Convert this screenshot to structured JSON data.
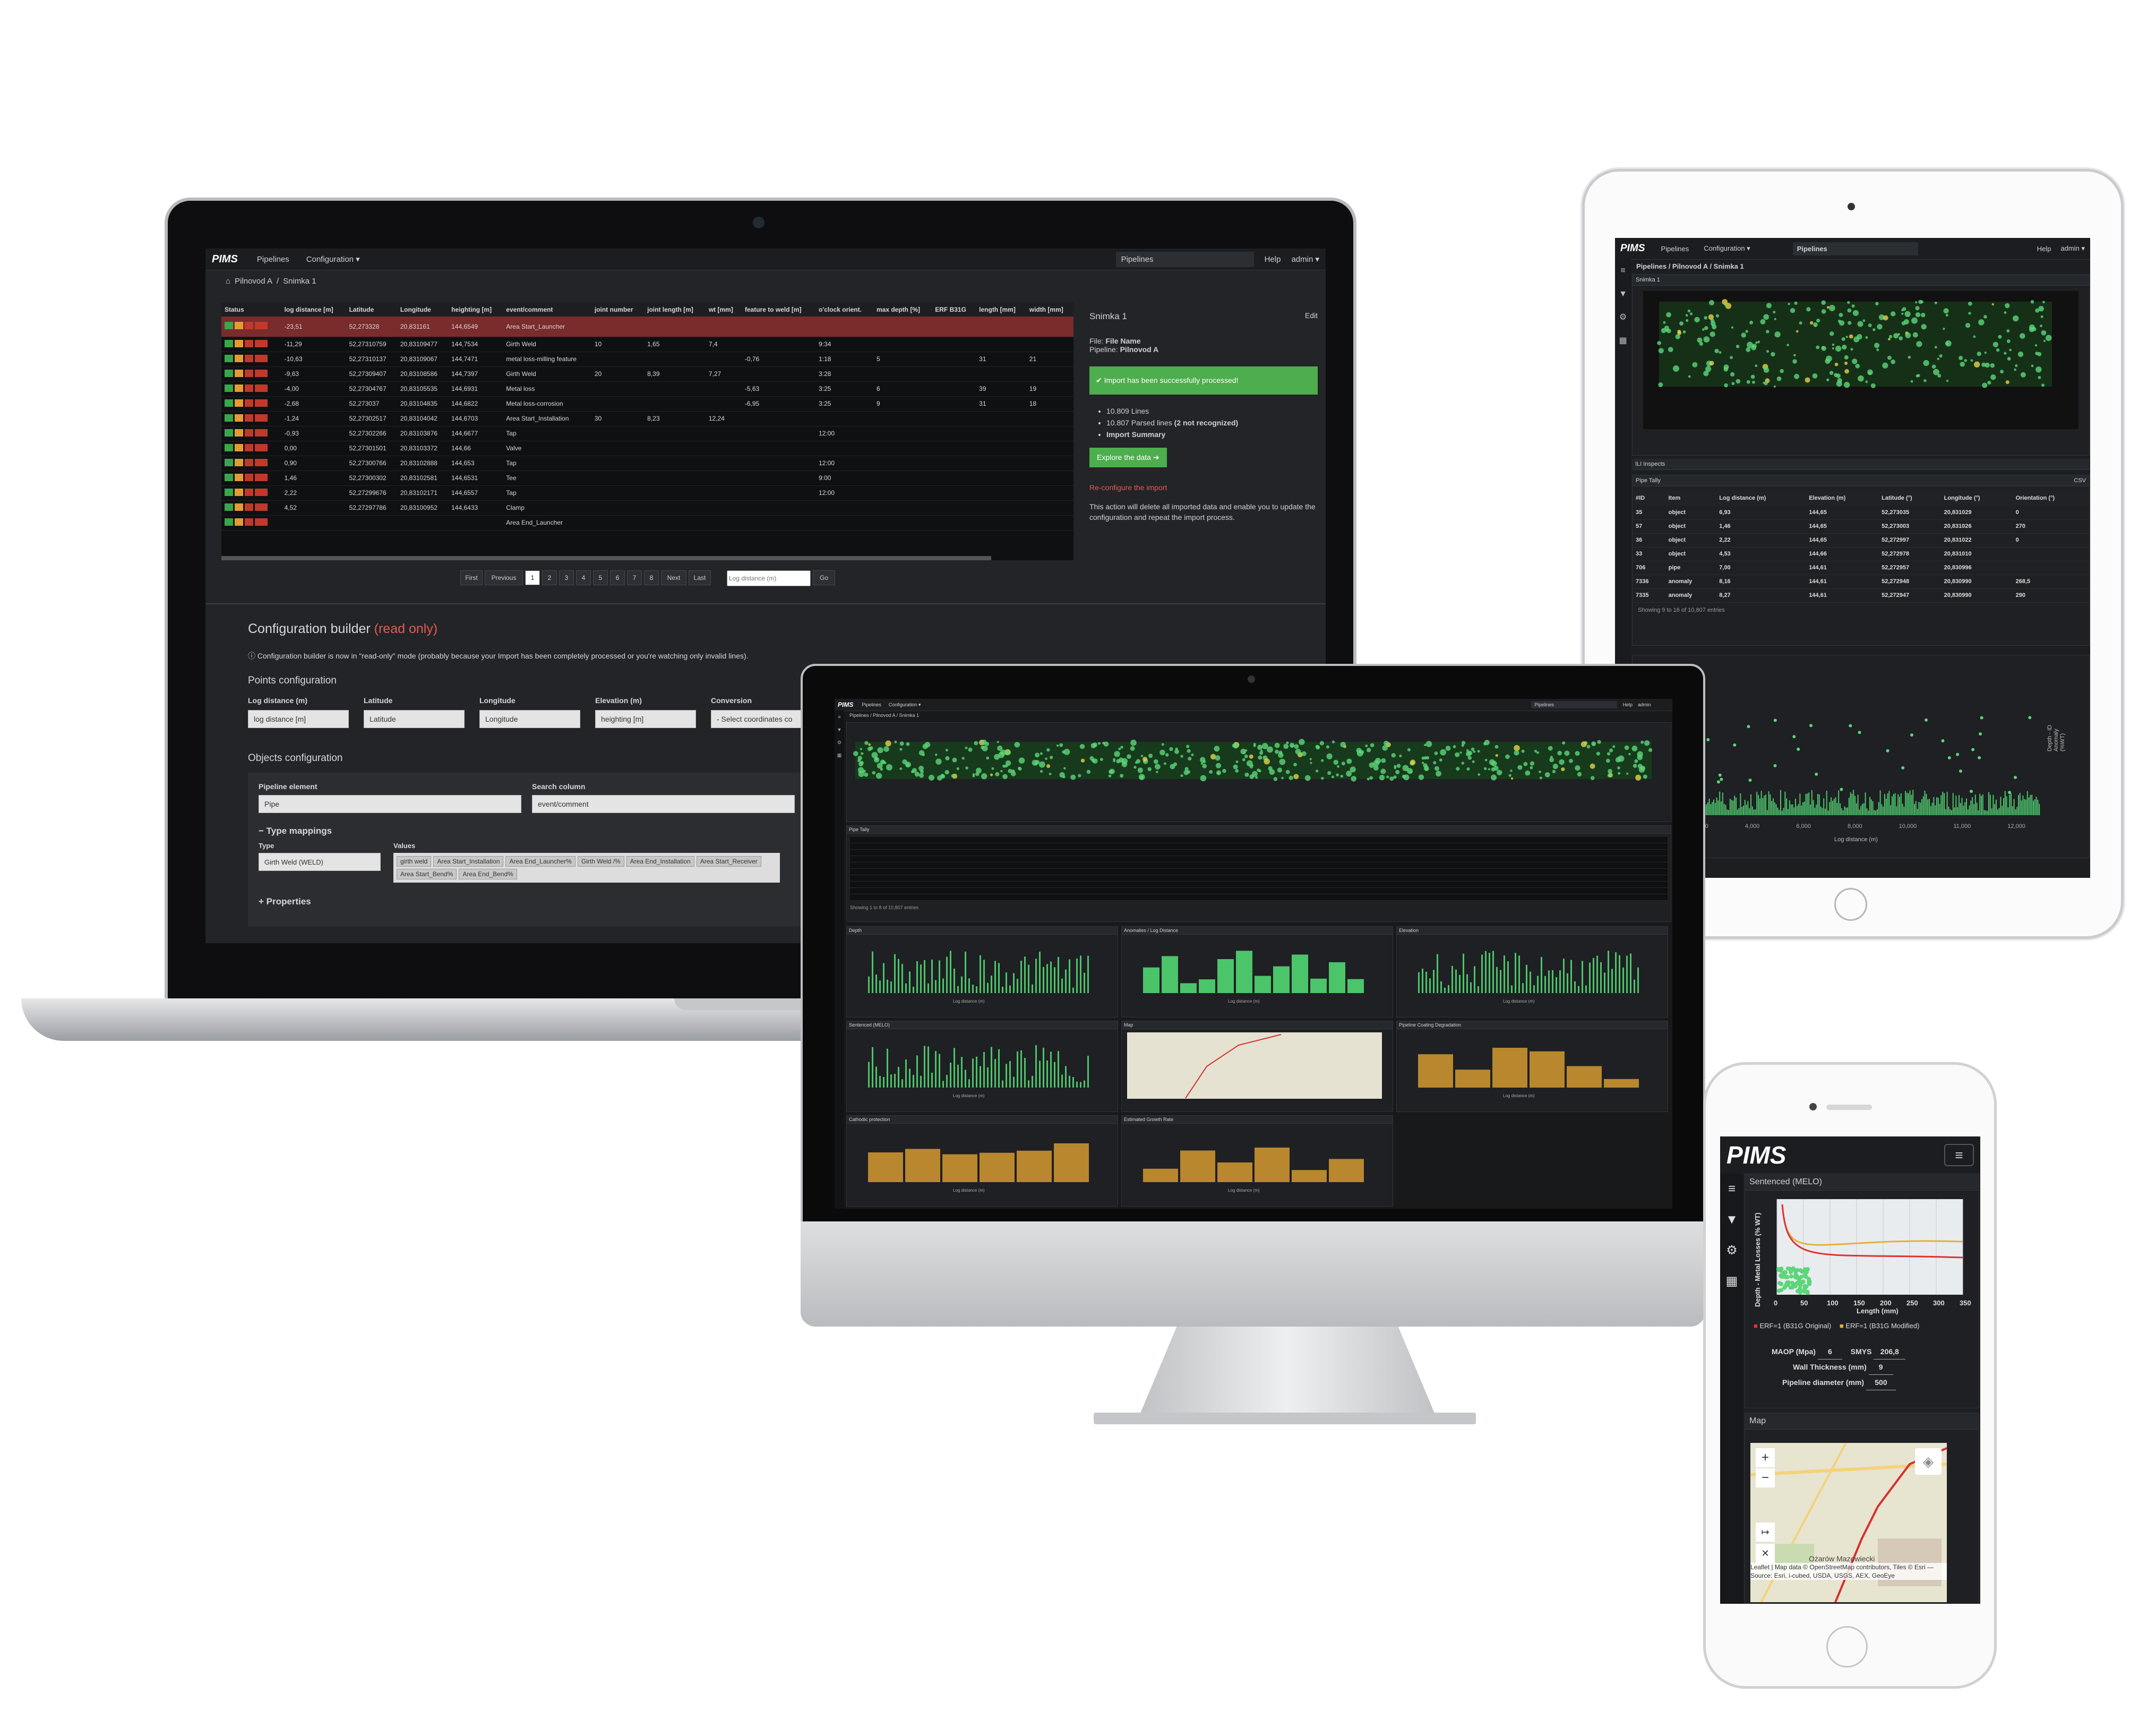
{
  "app": {
    "logo": "PIMS"
  },
  "laptop": {
    "nav": {
      "pipelines": "Pipelines",
      "configuration": "Configuration ▾",
      "pipelines_select": "Pipelines",
      "help": "Help",
      "admin": "admin ▾"
    },
    "breadcrumb": {
      "home_icon": "home-icon",
      "crumb1": "Pilnovod A",
      "sep": "/",
      "crumb2": "Snimka 1"
    },
    "table": {
      "headers": [
        "Status",
        "log distance [m]",
        "Latitude",
        "Longitude",
        "heighting [m]",
        "event/comment",
        "joint number",
        "joint length [m]",
        "wt [mm]",
        "feature to weld [m]",
        "o'clock orient.",
        "max depth [%]",
        "ERF B31G",
        "length [mm]",
        "width [mm]"
      ],
      "rows": [
        [
          "",
          "-23,51",
          "52,273328",
          "20,831161",
          "144,6549",
          "Area Start_Launcher",
          "",
          "",
          "",
          "",
          "",
          "",
          "",
          "",
          ""
        ],
        [
          "",
          "-11,29",
          "52,27310759",
          "20,83109477",
          "144,7534",
          "Girth Weld",
          "10",
          "1,65",
          "7,4",
          "",
          "9:34",
          "",
          "",
          "",
          ""
        ],
        [
          "",
          "-10,63",
          "52,27310137",
          "20,83109067",
          "144,7471",
          "metal loss-milling feature",
          "",
          "",
          "",
          "-0,76",
          "1:18",
          "5",
          "",
          "31",
          "21"
        ],
        [
          "",
          "-9,63",
          "52,27309407",
          "20,83108586",
          "144,7397",
          "Girth Weld",
          "20",
          "8,39",
          "7,27",
          "",
          "3:28",
          "",
          "",
          "",
          ""
        ],
        [
          "",
          "-4,00",
          "52,27304767",
          "20,83105535",
          "144,6931",
          "Metal loss",
          "",
          "",
          "",
          "-5,63",
          "3:25",
          "6",
          "",
          "39",
          "19"
        ],
        [
          "",
          "-2,68",
          "52,273037",
          "20,83104835",
          "144,6822",
          "Metal loss-corrosion",
          "",
          "",
          "",
          "-6,95",
          "3:25",
          "9",
          "",
          "31",
          "18"
        ],
        [
          "",
          "-1,24",
          "52,27302517",
          "20,83104042",
          "144,6703",
          "Area Start_Installation",
          "30",
          "8,23",
          "12,24",
          "",
          "",
          "",
          "",
          "",
          ""
        ],
        [
          "",
          "-0,93",
          "52,27302266",
          "20,83103876",
          "144,6677",
          "Tap",
          "",
          "",
          "",
          "",
          "12:00",
          "",
          "",
          "",
          ""
        ],
        [
          "",
          "0,00",
          "52,27301501",
          "20,83103372",
          "144,66",
          "Valve",
          "",
          "",
          "",
          "",
          "",
          "",
          "",
          "",
          ""
        ],
        [
          "",
          "0,90",
          "52,27300766",
          "20,83102888",
          "144,653",
          "Tap",
          "",
          "",
          "",
          "",
          "12:00",
          "",
          "",
          "",
          ""
        ],
        [
          "",
          "1,46",
          "52,27300302",
          "20,83102581",
          "144,6531",
          "Tee",
          "",
          "",
          "",
          "",
          "9:00",
          "",
          "",
          "",
          ""
        ],
        [
          "",
          "2,22",
          "52,27299676",
          "20,83102171",
          "144,6557",
          "Tap",
          "",
          "",
          "",
          "",
          "12:00",
          "",
          "",
          "",
          ""
        ],
        [
          "",
          "4,52",
          "52,27297786",
          "20,83100952",
          "144,6433",
          "Clamp",
          "",
          "",
          "",
          "",
          "",
          "",
          "",
          "",
          ""
        ],
        [
          "",
          "",
          "",
          "",
          "",
          "Area End_Launcher",
          "",
          "",
          "",
          "",
          "",
          "",
          "",
          "",
          ""
        ]
      ]
    },
    "pagination": {
      "first": "First",
      "previous": "Previous",
      "pages": [
        "1",
        "2",
        "3",
        "4",
        "5",
        "6",
        "7",
        "8"
      ],
      "next": "Next",
      "last": "Last",
      "goto_placeholder": "Log distance (m)",
      "go": "Go"
    },
    "side": {
      "title": "Snimka 1",
      "edit": "Edit",
      "file_label": "File:",
      "file_value": "File Name",
      "pipeline_label": "Pipeline:",
      "pipeline_value": "Pilnovod A",
      "success": "✔ Import has been successfully processed!",
      "lines": "10.809 Lines",
      "parsed": "10.807 Parsed lines",
      "not_recognized": "(2 not recognized)",
      "summary": "Import Summary",
      "explore": "Explore the data ➔",
      "reconfigure": "Re-configure the import",
      "reconfigure_text": "This action will delete all imported data and enable you to update the configuration and repeat the import process."
    },
    "config": {
      "title": "Configuration builder",
      "readonly": "(read only)",
      "notice": "Configuration builder is now in \"read-only\" mode (probably because your Import has been completely processed or you're watching only invalid lines).",
      "points_title": "Points configuration",
      "points_labels": [
        "Log distance (m)",
        "Latitude",
        "Longitude",
        "Elevation (m)",
        "Conversion"
      ],
      "points_values": [
        "log distance [m]",
        "Latitude",
        "Longitude",
        "heighting [m]",
        "- Select coordinates co"
      ],
      "objects_title": "Objects configuration",
      "pipeline_element_label": "Pipeline element",
      "pipeline_element_value": "Pipe",
      "search_column_label": "Search column",
      "search_column_value": "event/comment",
      "type_mappings": "Type mappings",
      "type_label": "Type",
      "values_label": "Values",
      "type_value": "Girth Weld (WELD)",
      "tags": [
        "girth weld",
        "Area Start_Installation",
        "Area End_Launcher%",
        "Girth Weld /%",
        "Area End_Installation",
        "Area Start_Receiver",
        "Area Start_Bend%",
        "Area End_Bend%"
      ],
      "properties": "Properties"
    }
  },
  "tablet": {
    "nav": {
      "pipelines": "Pipelines",
      "configuration": "Configuration ▾",
      "pipelines_select": "Pipelines",
      "help": "Help",
      "admin": "admin ▾"
    },
    "breadcrumb": "Pipelines / Pilnovod A / Snimka 1",
    "panel1": "Snimka 1",
    "panel2": "ILI Inspects",
    "panel3": "Pipe Tally",
    "table_headers": [
      "#ID",
      "Item",
      "Log distance (m)",
      "Elevation (m)",
      "Latitude (°)",
      "Longitude (°)",
      "Orientation (°)"
    ],
    "rows": [
      [
        "35",
        "object",
        "6,93",
        "144,65",
        "52,273035",
        "20,831029",
        "0"
      ],
      [
        "57",
        "object",
        "1,46",
        "144,65",
        "52,273003",
        "20,831026",
        "270"
      ],
      [
        "36",
        "object",
        "2,22",
        "144,65",
        "52,272997",
        "20,831022",
        "0"
      ],
      [
        "33",
        "object",
        "4,53",
        "144,66",
        "52,272978",
        "20,831010",
        ""
      ],
      [
        "706",
        "pipe",
        "7,00",
        "144,61",
        "52,272957",
        "20,830996",
        ""
      ],
      [
        "7336",
        "anomaly",
        "8,16",
        "144,61",
        "52,272948",
        "20,830990",
        "268,5"
      ],
      [
        "7335",
        "anomaly",
        "8,27",
        "144,61",
        "52,272947",
        "20,830990",
        "290"
      ]
    ],
    "showing": "Showing 9 to 16 of 10,807 entries",
    "csv": "CSV",
    "chart_x_label": "Log distance (m)",
    "chart_y_label": "Depth - ID Anomaly (%WT)",
    "x_ticks": [
      "0",
      "2,000",
      "4,000",
      "6,000",
      "8,000",
      "10,000",
      "11,000",
      "12,000"
    ]
  },
  "imac": {
    "nav": {
      "pipelines": "Pipelines",
      "configuration": "Configuration ▾",
      "pipelines_select": "Pipelines",
      "help": "Help",
      "admin": "admin"
    },
    "breadcrumb": "Pipelines / Pilnovod A / Snimka 1",
    "panels": [
      "Depth",
      "Anomalies / Log Distance",
      "Elevation",
      "Sentenced (MELO)",
      "Map",
      "Pipeline Coating Degradation",
      "Cathodic protection",
      "Estimated Growth Rate"
    ],
    "x_label": "Log distance (m)",
    "pipe_tally": "Pipe Tally",
    "showing": "Showing 1 to 8 of 10,807 entries"
  },
  "phone": {
    "logo": "PIMS",
    "panel1": "Sentenced (MELO)",
    "y_label": "Depth - Metal Losses (% WT)",
    "x_label": "Length (mm)",
    "x_ticks": [
      "0",
      "50",
      "100",
      "150",
      "200",
      "250",
      "300",
      "350"
    ],
    "legend1": "ERF=1 (B31G Original)",
    "legend2": "ERF=1 (B31G Modified)",
    "maop_label": "MAOP (Mpa)",
    "maop_value": "6",
    "smys_label": "SMYS",
    "smys_value": "206,8",
    "wall_label": "Wall Thickness (mm)",
    "wall_value": "9",
    "diam_label": "Pipeline diameter (mm)",
    "diam_value": "500",
    "panel2": "Map",
    "map_place": "Ożarów Mazowiecki",
    "attribution": "Leaflet | Map data © OpenStreetMap contributors, Tiles © Esri — Source: Esri, i-cubed, USDA, USGS, AEX, GeoEye"
  },
  "colors": {
    "accent_green": "#4cae4c",
    "accent_red": "#c0392b",
    "row_highlight": "#7a2b2b",
    "orange": "#e39b34",
    "chart_green": "#5cd67a"
  }
}
